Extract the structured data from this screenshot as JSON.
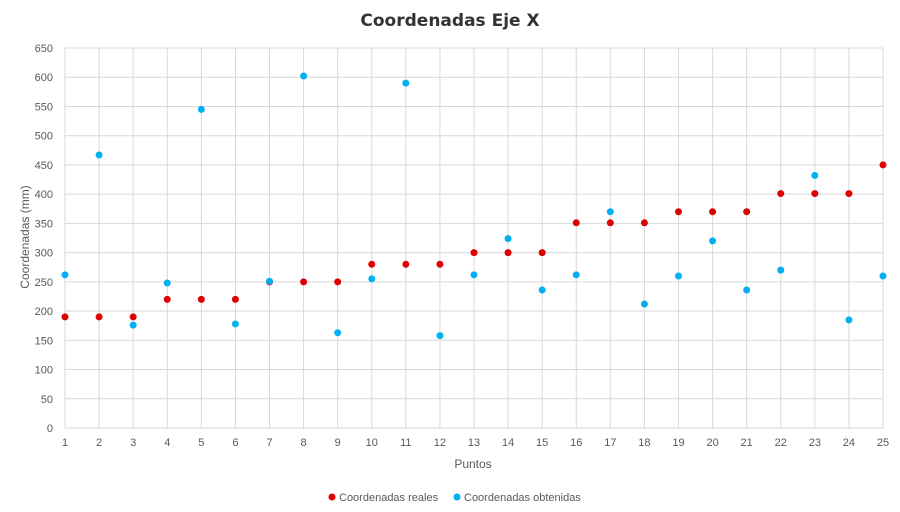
{
  "chart_data": {
    "type": "scatter",
    "title": "Coordenadas Eje X",
    "xlabel": "Puntos",
    "ylabel": "Coordenadas (mm)",
    "xlim": [
      1,
      25
    ],
    "ylim": [
      0,
      650
    ],
    "x_ticks": [
      1,
      2,
      3,
      4,
      5,
      6,
      7,
      8,
      9,
      10,
      11,
      12,
      13,
      14,
      15,
      16,
      17,
      18,
      19,
      20,
      21,
      22,
      23,
      24,
      25
    ],
    "y_ticks": [
      0,
      50,
      100,
      150,
      200,
      250,
      300,
      350,
      400,
      450,
      500,
      550,
      600,
      650
    ],
    "grid": true,
    "legend_position": "bottom",
    "series": [
      {
        "name": "Coordenadas reales",
        "color": "#e00000",
        "x": [
          1,
          2,
          3,
          4,
          5,
          6,
          7,
          8,
          9,
          10,
          11,
          12,
          13,
          14,
          15,
          16,
          17,
          18,
          19,
          20,
          21,
          22,
          23,
          24,
          25
        ],
        "y": [
          190,
          190,
          190,
          220,
          220,
          220,
          250,
          250,
          250,
          280,
          280,
          280,
          300,
          300,
          300,
          351,
          351,
          351,
          370,
          370,
          370,
          401,
          401,
          401,
          450
        ]
      },
      {
        "name": "Coordenadas obtenidas",
        "color": "#00b0f0",
        "x": [
          1,
          2,
          3,
          4,
          5,
          6,
          7,
          8,
          9,
          10,
          11,
          12,
          13,
          14,
          15,
          16,
          17,
          18,
          19,
          20,
          21,
          22,
          23,
          24,
          25
        ],
        "y": [
          262,
          467,
          176,
          248,
          545,
          178,
          251,
          602,
          163,
          255,
          590,
          158,
          262,
          324,
          236,
          262,
          370,
          212,
          260,
          320,
          236,
          270,
          432,
          185,
          260
        ]
      }
    ]
  }
}
